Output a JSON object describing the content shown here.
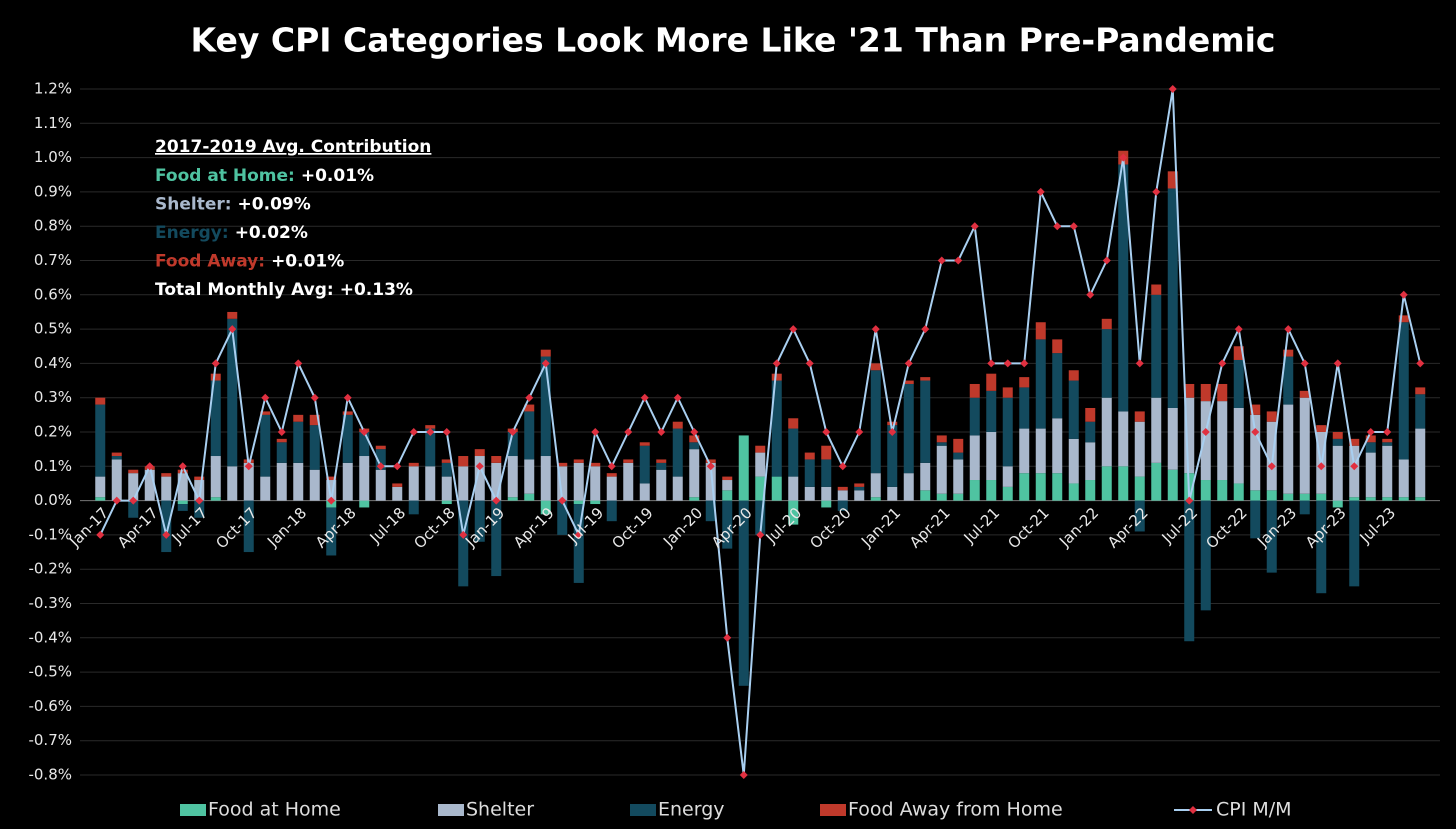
{
  "chart_data": {
    "type": "stacked_bar_line",
    "title": "Key CPI Categories Look More Like '21 Than Pre-Pandemic",
    "categories": [
      "Jan-17",
      null,
      null,
      "Apr-17",
      null,
      null,
      "Jul-17",
      null,
      null,
      "Oct-17",
      null,
      null,
      "Jan-18",
      null,
      null,
      "Apr-18",
      null,
      null,
      "Jul-18",
      null,
      null,
      "Oct-18",
      null,
      null,
      "Jan-19",
      null,
      null,
      "Apr-19",
      null,
      null,
      "Jul-19",
      null,
      null,
      "Oct-19",
      null,
      null,
      "Jan-20",
      null,
      null,
      "Apr-20",
      null,
      null,
      "Jul-20",
      null,
      null,
      "Oct-20",
      null,
      null,
      "Jan-21",
      null,
      null,
      "Apr-21",
      null,
      null,
      "Jul-21",
      null,
      null,
      "Oct-21",
      null,
      null,
      "Jan-22",
      null,
      null,
      "Apr-22",
      null,
      null,
      "Jul-22",
      null,
      null,
      "Oct-22",
      null,
      null,
      "Jan-23",
      null,
      null,
      "Apr-23",
      null,
      null,
      "Jul-23",
      null,
      null
    ],
    "series": [
      {
        "name": "Food at Home",
        "color": "#4fc3a1",
        "kind": "bar",
        "values": [
          0.01,
          0,
          0,
          0,
          0,
          -0.01,
          0,
          0.01,
          0,
          0,
          0,
          0,
          0,
          0,
          -0.02,
          0,
          -0.02,
          0,
          0,
          0,
          0,
          -0.01,
          0,
          0,
          0,
          0.01,
          0.02,
          -0.04,
          0,
          -0.01,
          -0.01,
          0,
          0,
          0,
          0,
          0,
          0.01,
          0,
          0.03,
          0.19,
          0.07,
          0.07,
          -0.07,
          0,
          -0.02,
          0,
          0,
          0.01,
          0,
          0,
          0.03,
          0.02,
          0.02,
          0.06,
          0.06,
          0.04,
          0.08,
          0.08,
          0.08,
          0.05,
          0.06,
          0.1,
          0.1,
          0.07,
          0.11,
          0.09,
          0.08,
          0.06,
          0.06,
          0.05,
          0.03,
          0.03,
          0.02,
          0.02,
          0.02,
          -0.02,
          0.01,
          0.01,
          0.01,
          0.01,
          0.01
        ]
      },
      {
        "name": "Shelter",
        "color": "#a9b8cc",
        "kind": "bar",
        "values": [
          0.06,
          0.12,
          0.08,
          0.09,
          0.07,
          0.08,
          0.06,
          0.12,
          0.1,
          0.11,
          0.07,
          0.11,
          0.11,
          0.09,
          0.06,
          0.11,
          0.13,
          0.09,
          0.04,
          0.1,
          0.1,
          0.07,
          0.1,
          0.13,
          0.11,
          0.12,
          0.1,
          0.13,
          0.1,
          0.11,
          0.1,
          0.07,
          0.11,
          0.05,
          0.09,
          0.07,
          0.14,
          0.11,
          0.03,
          0,
          0.07,
          0,
          0.07,
          0.04,
          0.04,
          0.03,
          0.03,
          0.07,
          0.04,
          0.08,
          0.08,
          0.14,
          0.1,
          0.13,
          0.14,
          0.06,
          0.13,
          0.13,
          0.16,
          0.13,
          0.11,
          0.2,
          0.16,
          0.16,
          0.19,
          0.18,
          0.22,
          0.23,
          0.23,
          0.22,
          0.22,
          0.2,
          0.26,
          0.28,
          0.18,
          0.16,
          0.15,
          0.13,
          0.15,
          0.11,
          0.2
        ]
      },
      {
        "name": "Energy",
        "color": "#134a5e",
        "kind": "bar",
        "values": [
          0.21,
          0.01,
          -0.05,
          0,
          -0.15,
          -0.02,
          -0.05,
          0.22,
          0.43,
          -0.15,
          0.18,
          0.06,
          0.12,
          0.13,
          -0.14,
          0.14,
          0.07,
          0.06,
          0,
          -0.04,
          0.11,
          0.04,
          -0.25,
          -0.12,
          -0.22,
          0.07,
          0.14,
          0.29,
          -0.1,
          -0.23,
          0,
          -0.06,
          0,
          0.11,
          0.02,
          0.14,
          0.02,
          -0.06,
          -0.14,
          -0.54,
          -0.1,
          0.28,
          0.14,
          0.08,
          0.08,
          -0.03,
          0.01,
          0.3,
          0.18,
          0.26,
          0.24,
          0.01,
          0.02,
          0.11,
          0.12,
          0.2,
          0.12,
          0.26,
          0.19,
          0.17,
          0.06,
          0.2,
          0.72,
          -0.09,
          0.3,
          0.64,
          -0.41,
          -0.32,
          0,
          0.14,
          -0.11,
          -0.21,
          0.14,
          -0.04,
          -0.27,
          0.02,
          -0.25,
          0.03,
          0.01,
          0.4,
          0.1
        ]
      },
      {
        "name": "Food Away from Home",
        "color": "#c0392b",
        "kind": "bar",
        "values": [
          0.02,
          0.01,
          0.01,
          0.01,
          0.01,
          0.01,
          0.01,
          0.02,
          0.02,
          0.01,
          0.01,
          0.01,
          0.02,
          0.03,
          0.01,
          0.01,
          0.01,
          0.01,
          0.01,
          0.01,
          0.01,
          0.01,
          0.03,
          0.02,
          0.02,
          0.01,
          0.02,
          0.02,
          0.01,
          0.01,
          0.01,
          0.01,
          0.01,
          0.01,
          0.01,
          0.02,
          0.02,
          0.01,
          0.01,
          0,
          0.02,
          0.02,
          0.03,
          0.02,
          0.04,
          0.01,
          0.01,
          0.02,
          0.01,
          0.01,
          0.01,
          0.02,
          0.04,
          0.04,
          0.05,
          0.03,
          0.03,
          0.05,
          0.04,
          0.03,
          0.04,
          0.03,
          0.04,
          0.03,
          0.03,
          0.05,
          0.04,
          0.05,
          0.05,
          0.04,
          0.03,
          0.03,
          0.02,
          0.02,
          0.02,
          0.02,
          0.02,
          0.02,
          0.01,
          0.02,
          0.02
        ]
      },
      {
        "name": "CPI M/M",
        "color": "#a9cff0",
        "marker_color": "#e03040",
        "kind": "line",
        "values": [
          -0.1,
          0,
          0,
          0.1,
          -0.1,
          0.1,
          0,
          0.4,
          0.5,
          0.1,
          0.3,
          0.2,
          0.4,
          0.3,
          0,
          0.3,
          0.2,
          0.1,
          0.1,
          0.2,
          0.2,
          0.2,
          -0.1,
          0.1,
          0,
          0.2,
          0.3,
          0.4,
          0,
          -0.1,
          0.2,
          0.1,
          0.2,
          0.3,
          0.2,
          0.3,
          0.2,
          0.1,
          -0.4,
          -0.8,
          -0.1,
          0.4,
          0.5,
          0.4,
          0.2,
          0.1,
          0.2,
          0.5,
          0.2,
          0.4,
          0.5,
          0.7,
          0.7,
          0.8,
          0.4,
          0.4,
          0.4,
          0.9,
          0.8,
          0.8,
          0.6,
          0.7,
          1.0,
          0.4,
          0.9,
          1.2,
          0,
          0.2,
          0.4,
          0.5,
          0.2,
          0.1,
          0.5,
          0.4,
          0.1,
          0.4,
          0.1,
          0.2,
          0.2,
          0.6,
          0.4
        ]
      }
    ],
    "ylim": [
      -0.8,
      1.2
    ],
    "yticks": [
      {
        "value": -0.8,
        "label": "-0.8%"
      },
      {
        "value": -0.7,
        "label": "-0.7%"
      },
      {
        "value": -0.6,
        "label": "-0.6%"
      },
      {
        "value": -0.5,
        "label": "-0.5%"
      },
      {
        "value": -0.4,
        "label": "-0.4%"
      },
      {
        "value": -0.3,
        "label": "-0.3%"
      },
      {
        "value": -0.2,
        "label": "-0.2%"
      },
      {
        "value": -0.1,
        "label": "-0.1%"
      },
      {
        "value": 0,
        "label": "0.0%"
      },
      {
        "value": 0.1,
        "label": "0.1%"
      },
      {
        "value": 0.2,
        "label": "0.2%"
      },
      {
        "value": 0.3,
        "label": "0.3%"
      },
      {
        "value": 0.4,
        "label": "0.4%"
      },
      {
        "value": 0.5,
        "label": "0.5%"
      },
      {
        "value": 0.6,
        "label": "0.6%"
      },
      {
        "value": 0.7,
        "label": "0.7%"
      },
      {
        "value": 0.8,
        "label": "0.8%"
      },
      {
        "value": 0.9,
        "label": "0.9%"
      },
      {
        "value": 1.0,
        "label": "1.0%"
      },
      {
        "value": 1.1,
        "label": "1.1%"
      },
      {
        "value": 1.2,
        "label": "1.2%"
      }
    ],
    "grid": true,
    "legend": "bottom",
    "annotation": {
      "title": "2017-2019 Avg. Contribution",
      "items": [
        {
          "label": "Food at Home:",
          "value": "+0.01%",
          "color": "#4fc3a1"
        },
        {
          "label": "Shelter:",
          "value": "+0.09%",
          "color": "#a9b8cc"
        },
        {
          "label": "Energy:",
          "value": "+0.02%",
          "color": "#134a5e"
        },
        {
          "label": "Food Away:",
          "value": "+0.01%",
          "color": "#c0392b"
        },
        {
          "label": "Total Monthly Avg:",
          "value": "+0.13%",
          "color": "#ffffff"
        }
      ]
    }
  }
}
